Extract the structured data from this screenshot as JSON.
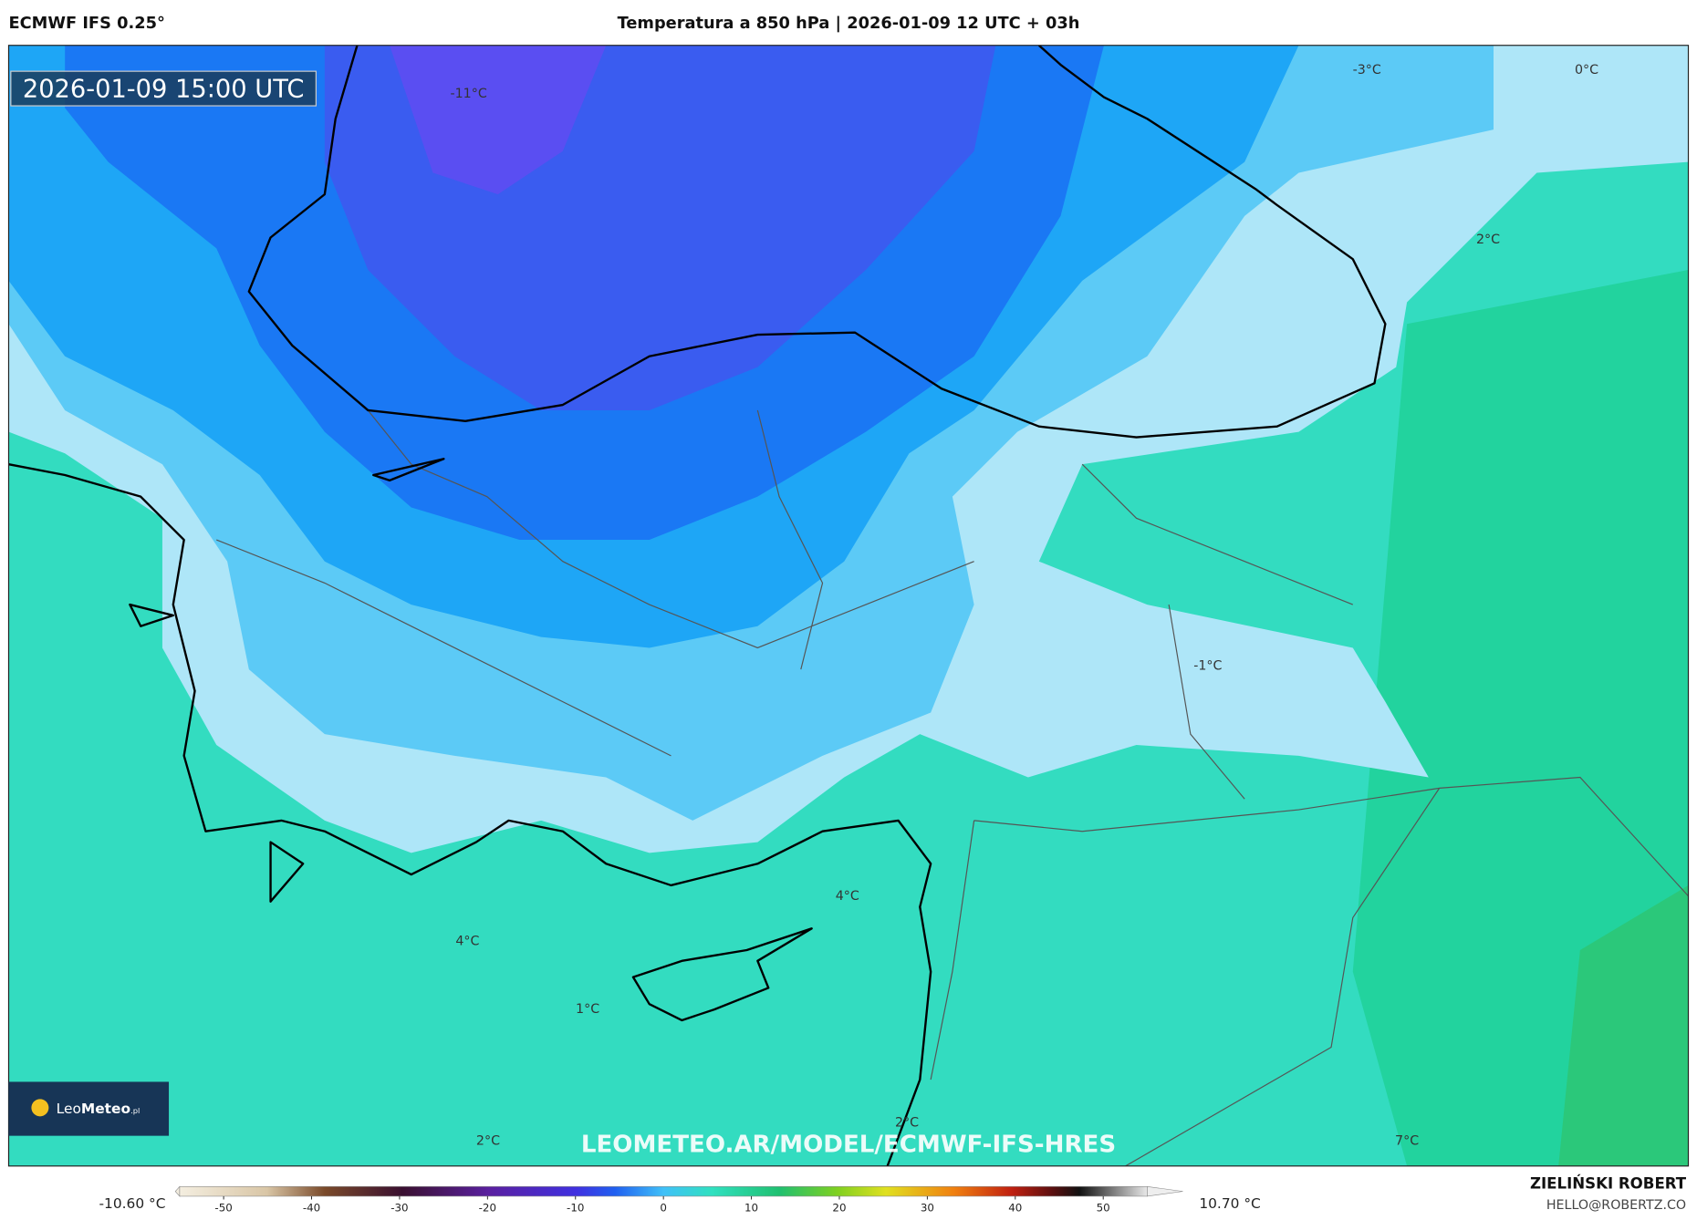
{
  "header": {
    "left": "ECMWF IFS 0.25°",
    "title": "Temperatura a 850 hPa | 2026-01-09 12 UTC + 03h"
  },
  "map": {
    "valid_time": "2026-01-09 15:00 UTC",
    "contour_labels": [
      "-11°C",
      "-3°C",
      "0°C",
      "2°C",
      "-1°C",
      "4°C",
      "4°C",
      "1°C",
      "2°C",
      "2°C",
      "7°C"
    ],
    "watermark": "LEOMETEO.AR/MODEL/ECMWF-IFS-HRES",
    "logo": {
      "leo": "Leo",
      "meteo": "Meteo",
      "suffix": ".pl"
    }
  },
  "colorbar": {
    "min_label": "-10.60 °C",
    "max_label": "10.70 °C",
    "lim": [
      -55,
      55
    ],
    "ticks": [
      -50,
      -40,
      -30,
      -20,
      -10,
      0,
      10,
      20,
      30,
      40,
      50
    ]
  },
  "footer": {
    "author": "ZIELIŃSKI ROBERT",
    "email": "HELLO@ROBERTZ.CO"
  }
}
